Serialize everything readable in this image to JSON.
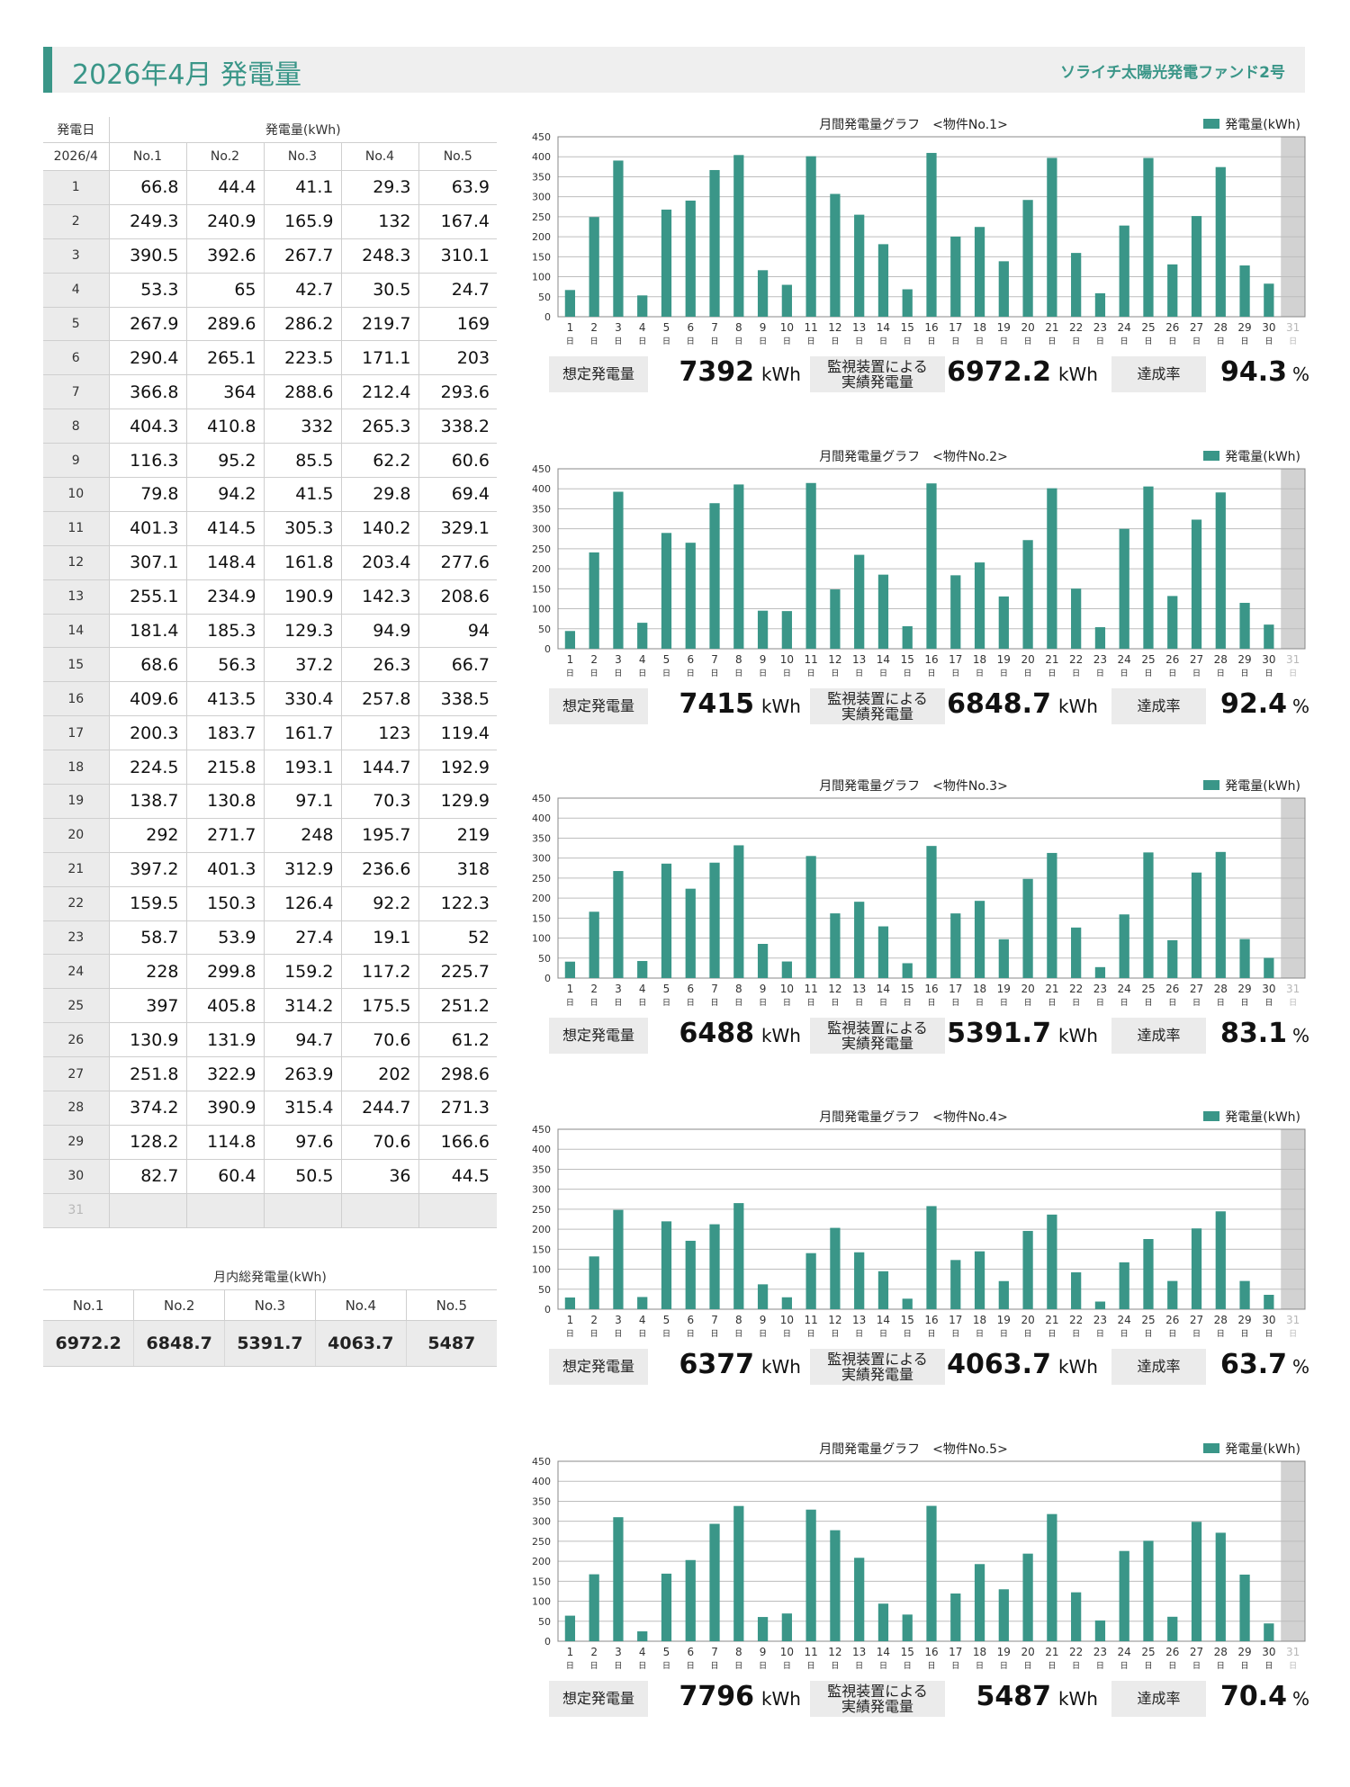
{
  "header": {
    "title": "2026年4月 発電量",
    "fund_name": "ソライチ太陽光発電ファンド2号"
  },
  "daily_table": {
    "col_date": "発電日",
    "col_generation": "発電量(kWh)",
    "month": "2026/4",
    "plants": [
      "No.1",
      "No.2",
      "No.3",
      "No.4",
      "No.5"
    ],
    "rows": [
      {
        "day": "1",
        "values": [
          "66.8",
          "44.4",
          "41.1",
          "29.3",
          "63.9"
        ]
      },
      {
        "day": "2",
        "values": [
          "249.3",
          "240.9",
          "165.9",
          "132",
          "167.4"
        ]
      },
      {
        "day": "3",
        "values": [
          "390.5",
          "392.6",
          "267.7",
          "248.3",
          "310.1"
        ]
      },
      {
        "day": "4",
        "values": [
          "53.3",
          "65",
          "42.7",
          "30.5",
          "24.7"
        ]
      },
      {
        "day": "5",
        "values": [
          "267.9",
          "289.6",
          "286.2",
          "219.7",
          "169"
        ]
      },
      {
        "day": "6",
        "values": [
          "290.4",
          "265.1",
          "223.5",
          "171.1",
          "203"
        ]
      },
      {
        "day": "7",
        "values": [
          "366.8",
          "364",
          "288.6",
          "212.4",
          "293.6"
        ]
      },
      {
        "day": "8",
        "values": [
          "404.3",
          "410.8",
          "332",
          "265.3",
          "338.2"
        ]
      },
      {
        "day": "9",
        "values": [
          "116.3",
          "95.2",
          "85.5",
          "62.2",
          "60.6"
        ]
      },
      {
        "day": "10",
        "values": [
          "79.8",
          "94.2",
          "41.5",
          "29.8",
          "69.4"
        ]
      },
      {
        "day": "11",
        "values": [
          "401.3",
          "414.5",
          "305.3",
          "140.2",
          "329.1"
        ]
      },
      {
        "day": "12",
        "values": [
          "307.1",
          "148.4",
          "161.8",
          "203.4",
          "277.6"
        ]
      },
      {
        "day": "13",
        "values": [
          "255.1",
          "234.9",
          "190.9",
          "142.3",
          "208.6"
        ]
      },
      {
        "day": "14",
        "values": [
          "181.4",
          "185.3",
          "129.3",
          "94.9",
          "94"
        ]
      },
      {
        "day": "15",
        "values": [
          "68.6",
          "56.3",
          "37.2",
          "26.3",
          "66.7"
        ]
      },
      {
        "day": "16",
        "values": [
          "409.6",
          "413.5",
          "330.4",
          "257.8",
          "338.5"
        ]
      },
      {
        "day": "17",
        "values": [
          "200.3",
          "183.7",
          "161.7",
          "123",
          "119.4"
        ]
      },
      {
        "day": "18",
        "values": [
          "224.5",
          "215.8",
          "193.1",
          "144.7",
          "192.9"
        ]
      },
      {
        "day": "19",
        "values": [
          "138.7",
          "130.8",
          "97.1",
          "70.3",
          "129.9"
        ]
      },
      {
        "day": "20",
        "values": [
          "292",
          "271.7",
          "248",
          "195.7",
          "219"
        ]
      },
      {
        "day": "21",
        "values": [
          "397.2",
          "401.3",
          "312.9",
          "236.6",
          "318"
        ]
      },
      {
        "day": "22",
        "values": [
          "159.5",
          "150.3",
          "126.4",
          "92.2",
          "122.3"
        ]
      },
      {
        "day": "23",
        "values": [
          "58.7",
          "53.9",
          "27.4",
          "19.1",
          "52"
        ]
      },
      {
        "day": "24",
        "values": [
          "228",
          "299.8",
          "159.2",
          "117.2",
          "225.7"
        ]
      },
      {
        "day": "25",
        "values": [
          "397",
          "405.8",
          "314.2",
          "175.5",
          "251.2"
        ]
      },
      {
        "day": "26",
        "values": [
          "130.9",
          "131.9",
          "94.7",
          "70.6",
          "61.2"
        ]
      },
      {
        "day": "27",
        "values": [
          "251.8",
          "322.9",
          "263.9",
          "202",
          "298.6"
        ]
      },
      {
        "day": "28",
        "values": [
          "374.2",
          "390.9",
          "315.4",
          "244.7",
          "271.3"
        ]
      },
      {
        "day": "29",
        "values": [
          "128.2",
          "114.8",
          "97.6",
          "70.6",
          "166.6"
        ]
      },
      {
        "day": "30",
        "values": [
          "82.7",
          "60.4",
          "50.5",
          "36",
          "44.5"
        ]
      },
      {
        "day": "31",
        "values": [
          "",
          "",
          "",
          "",
          ""
        ]
      }
    ]
  },
  "monthly_totals": {
    "caption": "月内総発電量(kWh)",
    "plants": [
      "No.1",
      "No.2",
      "No.3",
      "No.4",
      "No.5"
    ],
    "values": [
      "6972.2",
      "6848.7",
      "5391.7",
      "4063.7",
      "5487"
    ]
  },
  "stats_labels": {
    "expected": "想定発電量",
    "actual_line1": "監視装置による",
    "actual_line2": "実績発電量",
    "rate": "達成率",
    "unit_kwh": "kWh",
    "unit_pct": "%"
  },
  "charts": [
    {
      "title": "月間発電量グラフ　<物件No.1>",
      "expected": "7392",
      "actual": "6972.2",
      "rate": "94.3"
    },
    {
      "title": "月間発電量グラフ　<物件No.2>",
      "expected": "7415",
      "actual": "6848.7",
      "rate": "92.4"
    },
    {
      "title": "月間発電量グラフ　<物件No.3>",
      "expected": "6488",
      "actual": "5391.7",
      "rate": "83.1"
    },
    {
      "title": "月間発電量グラフ　<物件No.4>",
      "expected": "6377",
      "actual": "4063.7",
      "rate": "63.7"
    },
    {
      "title": "月間発電量グラフ　<物件No.5>",
      "expected": "7796",
      "actual": "5487",
      "rate": "70.4"
    }
  ],
  "chart_data": [
    {
      "type": "bar",
      "legend": "発電量(kWh)",
      "legend_position": "top-right",
      "grid": true,
      "ylim": [
        0,
        450
      ],
      "yticks": [
        0,
        50,
        100,
        150,
        200,
        250,
        300,
        350,
        400,
        450
      ],
      "categories": [
        "1",
        "2",
        "3",
        "4",
        "5",
        "6",
        "7",
        "8",
        "9",
        "10",
        "11",
        "12",
        "13",
        "14",
        "15",
        "16",
        "17",
        "18",
        "19",
        "20",
        "21",
        "22",
        "23",
        "24",
        "25",
        "26",
        "27",
        "28",
        "29",
        "30",
        "31"
      ],
      "category_suffix": "日",
      "values": [
        66.8,
        249.3,
        390.5,
        53.3,
        267.9,
        290.4,
        366.8,
        404.3,
        116.3,
        79.8,
        401.3,
        307.1,
        255.1,
        181.4,
        68.6,
        409.6,
        200.3,
        224.5,
        138.7,
        292,
        397.2,
        159.5,
        58.7,
        228,
        397,
        130.9,
        251.8,
        374.2,
        128.2,
        82.7,
        null
      ]
    },
    {
      "type": "bar",
      "legend": "発電量(kWh)",
      "legend_position": "top-right",
      "grid": true,
      "ylim": [
        0,
        450
      ],
      "yticks": [
        0,
        50,
        100,
        150,
        200,
        250,
        300,
        350,
        400,
        450
      ],
      "categories": [
        "1",
        "2",
        "3",
        "4",
        "5",
        "6",
        "7",
        "8",
        "9",
        "10",
        "11",
        "12",
        "13",
        "14",
        "15",
        "16",
        "17",
        "18",
        "19",
        "20",
        "21",
        "22",
        "23",
        "24",
        "25",
        "26",
        "27",
        "28",
        "29",
        "30",
        "31"
      ],
      "category_suffix": "日",
      "values": [
        44.4,
        240.9,
        392.6,
        65,
        289.6,
        265.1,
        364,
        410.8,
        95.2,
        94.2,
        414.5,
        148.4,
        234.9,
        185.3,
        56.3,
        413.5,
        183.7,
        215.8,
        130.8,
        271.7,
        401.3,
        150.3,
        53.9,
        299.8,
        405.8,
        131.9,
        322.9,
        390.9,
        114.8,
        60.4,
        null
      ]
    },
    {
      "type": "bar",
      "legend": "発電量(kWh)",
      "legend_position": "top-right",
      "grid": true,
      "ylim": [
        0,
        450
      ],
      "yticks": [
        0,
        50,
        100,
        150,
        200,
        250,
        300,
        350,
        400,
        450
      ],
      "categories": [
        "1",
        "2",
        "3",
        "4",
        "5",
        "6",
        "7",
        "8",
        "9",
        "10",
        "11",
        "12",
        "13",
        "14",
        "15",
        "16",
        "17",
        "18",
        "19",
        "20",
        "21",
        "22",
        "23",
        "24",
        "25",
        "26",
        "27",
        "28",
        "29",
        "30",
        "31"
      ],
      "category_suffix": "日",
      "values": [
        41.1,
        165.9,
        267.7,
        42.7,
        286.2,
        223.5,
        288.6,
        332,
        85.5,
        41.5,
        305.3,
        161.8,
        190.9,
        129.3,
        37.2,
        330.4,
        161.7,
        193.1,
        97.1,
        248,
        312.9,
        126.4,
        27.4,
        159.2,
        314.2,
        94.7,
        263.9,
        315.4,
        97.6,
        50.5,
        null
      ]
    },
    {
      "type": "bar",
      "legend": "発電量(kWh)",
      "legend_position": "top-right",
      "grid": true,
      "ylim": [
        0,
        450
      ],
      "yticks": [
        0,
        50,
        100,
        150,
        200,
        250,
        300,
        350,
        400,
        450
      ],
      "categories": [
        "1",
        "2",
        "3",
        "4",
        "5",
        "6",
        "7",
        "8",
        "9",
        "10",
        "11",
        "12",
        "13",
        "14",
        "15",
        "16",
        "17",
        "18",
        "19",
        "20",
        "21",
        "22",
        "23",
        "24",
        "25",
        "26",
        "27",
        "28",
        "29",
        "30",
        "31"
      ],
      "category_suffix": "日",
      "values": [
        29.3,
        132,
        248.3,
        30.5,
        219.7,
        171.1,
        212.4,
        265.3,
        62.2,
        29.8,
        140.2,
        203.4,
        142.3,
        94.9,
        26.3,
        257.8,
        123,
        144.7,
        70.3,
        195.7,
        236.6,
        92.2,
        19.1,
        117.2,
        175.5,
        70.6,
        202,
        244.7,
        70.6,
        36,
        null
      ]
    },
    {
      "type": "bar",
      "legend": "発電量(kWh)",
      "legend_position": "top-right",
      "grid": true,
      "ylim": [
        0,
        450
      ],
      "yticks": [
        0,
        50,
        100,
        150,
        200,
        250,
        300,
        350,
        400,
        450
      ],
      "categories": [
        "1",
        "2",
        "3",
        "4",
        "5",
        "6",
        "7",
        "8",
        "9",
        "10",
        "11",
        "12",
        "13",
        "14",
        "15",
        "16",
        "17",
        "18",
        "19",
        "20",
        "21",
        "22",
        "23",
        "24",
        "25",
        "26",
        "27",
        "28",
        "29",
        "30",
        "31"
      ],
      "category_suffix": "日",
      "values": [
        63.9,
        167.4,
        310.1,
        24.7,
        169,
        203,
        293.6,
        338.2,
        60.6,
        69.4,
        329.1,
        277.6,
        208.6,
        94,
        66.7,
        338.5,
        119.4,
        192.9,
        129.9,
        219,
        318,
        122.3,
        52,
        225.7,
        251.2,
        61.2,
        298.6,
        271.3,
        166.6,
        44.5,
        null
      ]
    }
  ],
  "colors": {
    "accent": "#3a9688",
    "bar": "#3a9688",
    "shade": "#ebebeb",
    "grid": "#bdbdbd",
    "missing_day_band": "#d2d2d2",
    "missing_day_text": "#b8b8b8"
  }
}
